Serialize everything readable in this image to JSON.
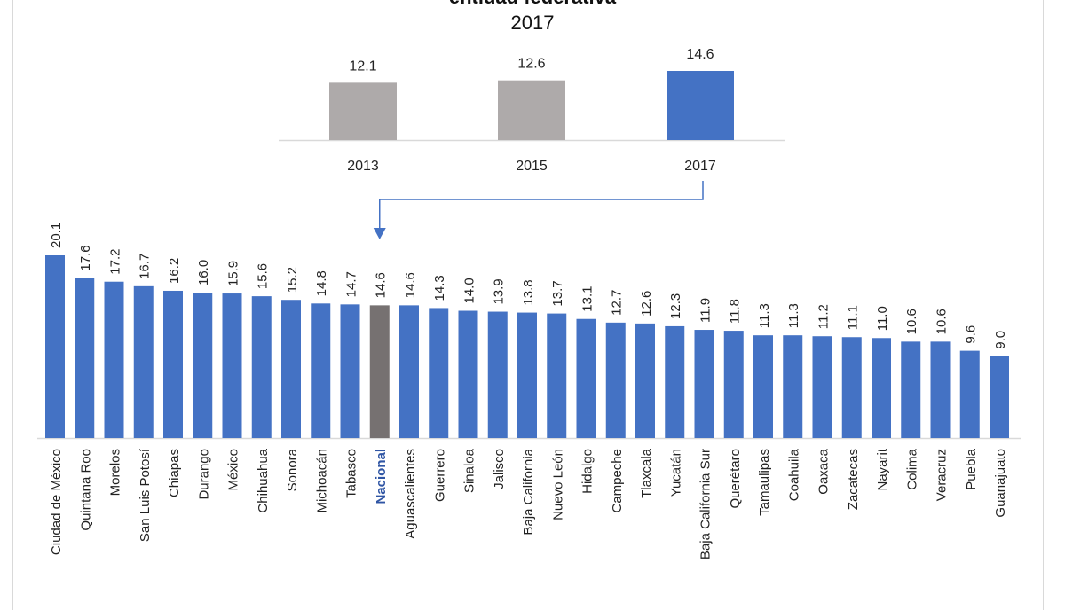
{
  "chart_data": [
    {
      "type": "bar",
      "title": "entidad federativa",
      "subtitle": "2017",
      "categories": [
        "2013",
        "2015",
        "2017"
      ],
      "values": [
        12.1,
        12.6,
        14.6
      ],
      "data_labels": [
        "12.1",
        "12.6",
        "14.6"
      ],
      "colors": [
        "#aeaaaa",
        "#aeaaaa",
        "#4472c4"
      ],
      "xlabel": "",
      "ylabel": "",
      "ylim": [
        0,
        16
      ],
      "grid": false
    },
    {
      "type": "bar",
      "categories": [
        "Ciudad de México",
        "Quintana Roo",
        "Morelos",
        "San Luis Potosí",
        "Chiapas",
        "Durango",
        "México",
        "Chihuahua",
        "Sonora",
        "Michoacán",
        "Tabasco",
        "Nacional",
        "Aguascalientes",
        "Guerrero",
        "Sinaloa",
        "Jalisco",
        "Baja California",
        "Nuevo León",
        "Hidalgo",
        "Campeche",
        "Tlaxcala",
        "Yucatán",
        "Baja California Sur",
        "Querétaro",
        "Tamaulipas",
        "Coahuila",
        "Oaxaca",
        "Zacatecas",
        "Nayarit",
        "Colima",
        "Veracruz",
        "Puebla",
        "Guanajuato"
      ],
      "values": [
        20.1,
        17.6,
        17.2,
        16.7,
        16.2,
        16.0,
        15.9,
        15.6,
        15.2,
        14.8,
        14.7,
        14.6,
        14.6,
        14.3,
        14.0,
        13.9,
        13.8,
        13.7,
        13.1,
        12.7,
        12.6,
        12.3,
        11.9,
        11.8,
        11.3,
        11.3,
        11.2,
        11.1,
        11.0,
        10.6,
        10.6,
        9.6,
        9.0
      ],
      "data_labels": [
        "20.1",
        "17.6",
        "17.2",
        "16.7",
        "16.2",
        "16.0",
        "15.9",
        "15.6",
        "15.2",
        "14.8",
        "14.7",
        "14.6",
        "14.6",
        "14.3",
        "14.0",
        "13.9",
        "13.8",
        "13.7",
        "13.1",
        "12.7",
        "12.6",
        "12.3",
        "11.9",
        "11.8",
        "11.3",
        "11.3",
        "11.2",
        "11.1",
        "11.0",
        "10.6",
        "10.6",
        "9.6",
        "9.0"
      ],
      "highlight_category": "Nacional",
      "colors": {
        "default": "#4472c4",
        "highlight": "#767171",
        "highlight_label": "#2f55a4"
      },
      "xlabel": "",
      "ylabel": "",
      "ylim": [
        0,
        20.1
      ],
      "grid": false
    }
  ],
  "connector": {
    "from": "2017",
    "to": "Nacional",
    "color": "#4472c4"
  }
}
